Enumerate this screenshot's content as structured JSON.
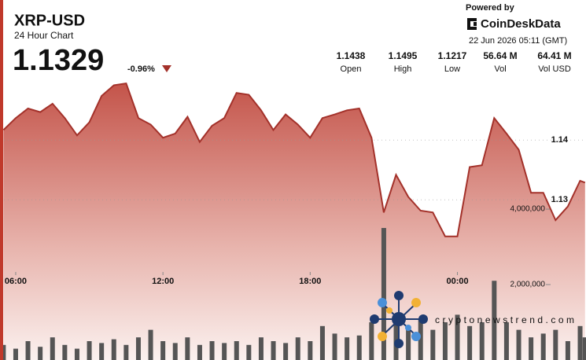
{
  "chart_data": {
    "type": "line",
    "title": "XRP-USD",
    "subtitle": "24 Hour Chart",
    "price": "1.1329",
    "change": "-0.96%",
    "stats": [
      {
        "value": "1.1438",
        "label": "Open"
      },
      {
        "value": "1.1495",
        "label": "High"
      },
      {
        "value": "1.1217",
        "label": "Low"
      },
      {
        "value": "56.64 M",
        "label": "Vol"
      },
      {
        "value": "64.41 M",
        "label": "Vol USD"
      }
    ],
    "powered_by": "Powered by",
    "brand": "CoinDeskData",
    "timestamp": "22 Jun 2026 05:11 (GMT)",
    "watermark": "cryptonewstrend.com",
    "x": [
      5.5,
      6,
      6.5,
      7,
      7.5,
      8,
      8.5,
      9,
      9.5,
      10,
      10.5,
      11,
      11.5,
      12,
      12.5,
      13,
      13.5,
      14,
      14.5,
      15,
      15.5,
      16,
      16.5,
      17,
      17.5,
      18,
      18.5,
      19,
      19.5,
      20,
      20.5,
      21,
      21.5,
      22,
      22.5,
      23,
      23.5,
      24,
      24.5,
      25,
      25.5,
      26,
      26.5,
      27,
      27.5,
      28,
      28.5,
      29,
      29.2
    ],
    "series": [
      {
        "color": "#a3312a",
        "values": [
          1.1417,
          1.1437,
          1.1453,
          1.1447,
          1.1461,
          1.1437,
          1.1408,
          1.143,
          1.1474,
          1.1492,
          1.1495,
          1.1437,
          1.1426,
          1.1404,
          1.1411,
          1.1439,
          1.1397,
          1.1424,
          1.1437,
          1.1479,
          1.1476,
          1.145,
          1.1417,
          1.1443,
          1.1426,
          1.1404,
          1.1437,
          1.1443,
          1.145,
          1.1453,
          1.1404,
          1.1279,
          1.1342,
          1.1305,
          1.1282,
          1.1279,
          1.1239,
          1.1239,
          1.1355,
          1.1358,
          1.1437,
          1.1411,
          1.1384,
          1.1312,
          1.1312,
          1.1266,
          1.1289,
          1.1332,
          1.1329
        ]
      },
      {
        "color": "#555555",
        "axis": "y2",
        "values": [
          400000,
          300000,
          500000,
          350000,
          600000,
          400000,
          300000,
          500000,
          450000,
          550000,
          400000,
          600000,
          800000,
          500000,
          450000,
          600000,
          400000,
          500000,
          450000,
          500000,
          400000,
          600000,
          500000,
          450000,
          600000,
          500000,
          900000,
          700000,
          600000,
          650000,
          1000000,
          3500000,
          1200000,
          900000,
          1100000,
          800000,
          1000000,
          1200000,
          900000,
          1000000,
          2100000,
          1000000,
          800000,
          600000,
          700000,
          800000,
          500000,
          900000,
          600000
        ]
      }
    ],
    "xlim": [
      5.36,
      29.24
    ],
    "xticks": [
      {
        "value": 6,
        "label": "06:00"
      },
      {
        "value": 12,
        "label": "12:00"
      },
      {
        "value": 18,
        "label": "18:00"
      },
      {
        "value": 24,
        "label": "00:00"
      }
    ],
    "ylim": [
      1.1032,
      1.1503
    ],
    "yticks": [
      1.13,
      1.14
    ],
    "y2lim": [
      0,
      7460000
    ],
    "y2ticks": [
      {
        "value": 2000000,
        "label": "2,000,000"
      },
      {
        "value": 4000000,
        "label": "4,000,000"
      }
    ],
    "grid": true
  }
}
